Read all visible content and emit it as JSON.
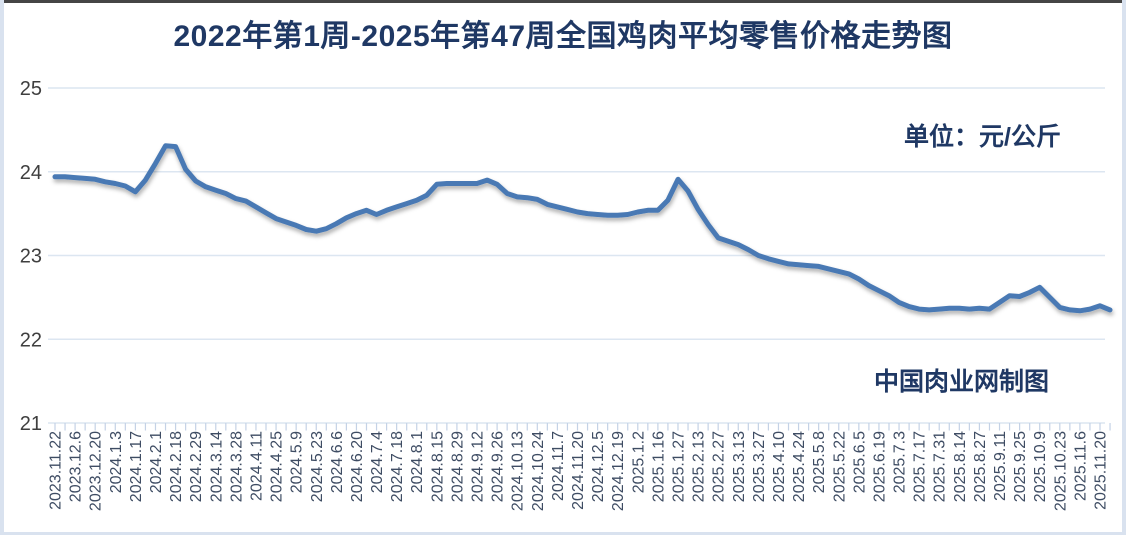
{
  "chart": {
    "title": "2022年第1周-2025年第47周全国鸡肉平均零售价格走势图",
    "unit_label": "单位：元/公斤",
    "credit": "中国肉业网制图"
  },
  "colors": {
    "title_text": "#1F3864",
    "line": "#4879B4",
    "gridline": "#DCE6F1",
    "tick": "#C4D2E6",
    "y_label_text": "#3F3F3F",
    "x_label_text": "#3E4C63",
    "frame_border": "#D9E2EF",
    "top_edge": "#454545",
    "background": "#FFFFFF"
  },
  "chart_data": {
    "type": "line",
    "title": "2022年第1周-2025年第47周全国鸡肉平均零售价格走势图",
    "unit": "元/公斤",
    "xlabel": "",
    "ylabel": "",
    "ylim": [
      21,
      25
    ],
    "y_ticks": [
      25,
      24,
      23,
      22,
      21
    ],
    "grid": "horizontal",
    "legend": "none",
    "points_per_label": 2,
    "x_labels": [
      "2023.11.22",
      "2023.12.6",
      "2023.12.20",
      "2024.1.3",
      "2024.1.17",
      "2024.2.1",
      "2024.2.18",
      "2024.2.29",
      "2024.3.14",
      "2024.3.28",
      "2024.4.11",
      "2024.4.25",
      "2024.5.9",
      "2024.5.23",
      "2024.6.6",
      "2024.6.20",
      "2024.7.4",
      "2024.7.18",
      "2024.8.1",
      "2024.8.15",
      "2024.8.29",
      "2024.9.12",
      "2024.9.26",
      "2024.10.13",
      "2024.10.24",
      "2024.11.7",
      "2024.11.20",
      "2024.12.5",
      "2024.12.19",
      "2025.1.2",
      "2025.1.16",
      "2025.1.27",
      "2025.2.13",
      "2025.2.27",
      "2025.3.13",
      "2025.3.27",
      "2025.4.10",
      "2025.4.24",
      "2025.5.8",
      "2025.5.22",
      "2025.6.5",
      "2025.6.19",
      "2025.7.3",
      "2025.7.17",
      "2025.7.31",
      "2025.8.14",
      "2025.8.27",
      "2025.9.11",
      "2025.9.25",
      "2025.10.9",
      "2025.10.23",
      "2025.11.6",
      "2025.11.20"
    ],
    "values": [
      23.94,
      23.94,
      23.93,
      23.92,
      23.91,
      23.88,
      23.86,
      23.83,
      23.76,
      23.9,
      24.1,
      24.31,
      24.3,
      24.03,
      23.89,
      23.82,
      23.78,
      23.74,
      23.68,
      23.65,
      23.58,
      23.51,
      23.44,
      23.4,
      23.36,
      23.31,
      23.29,
      23.32,
      23.38,
      23.45,
      23.5,
      23.54,
      23.49,
      23.54,
      23.58,
      23.62,
      23.66,
      23.72,
      23.85,
      23.86,
      23.86,
      23.86,
      23.86,
      23.9,
      23.85,
      23.74,
      23.7,
      23.69,
      23.67,
      23.61,
      23.58,
      23.55,
      23.52,
      23.5,
      23.49,
      23.48,
      23.48,
      23.49,
      23.52,
      23.54,
      23.54,
      23.66,
      23.91,
      23.77,
      23.55,
      23.37,
      23.21,
      23.17,
      23.13,
      23.07,
      23.0,
      22.96,
      22.93,
      22.9,
      22.89,
      22.88,
      22.87,
      22.84,
      22.81,
      22.78,
      22.72,
      22.64,
      22.58,
      22.52,
      22.44,
      22.39,
      22.36,
      22.35,
      22.36,
      22.37,
      22.37,
      22.36,
      22.37,
      22.36,
      22.44,
      22.52,
      22.51,
      22.56,
      22.62,
      22.5,
      22.38,
      22.35,
      22.34,
      22.36,
      22.4,
      22.35
    ]
  }
}
